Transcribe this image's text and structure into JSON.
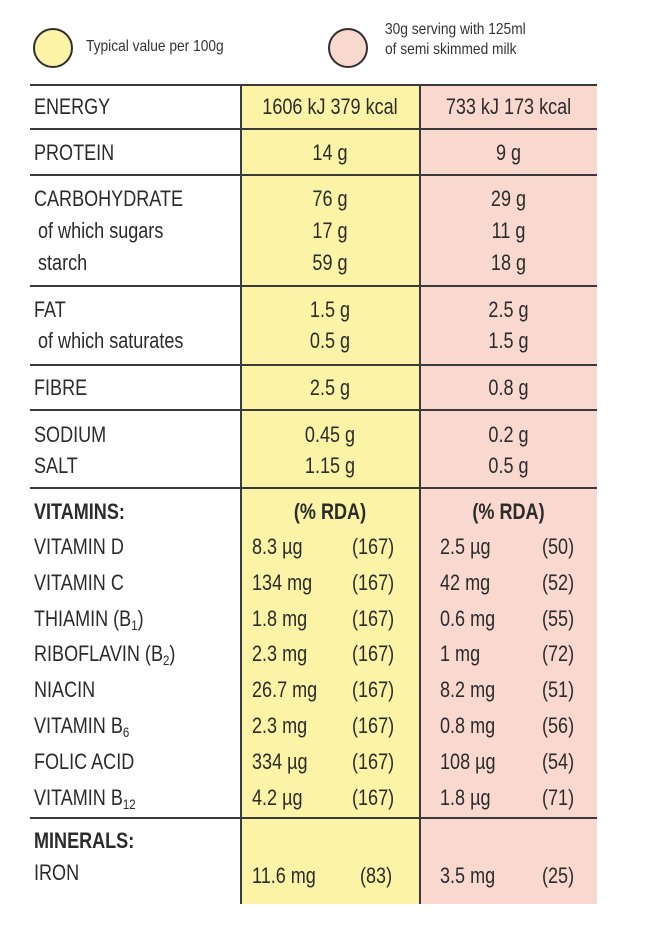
{
  "legend": {
    "per100g": "Typical value per 100g",
    "serving_line1": "30g serving with 125ml",
    "serving_line2": "of semi skimmed milk",
    "per100g_color": "#fbf3a6",
    "serving_color": "#f9d8cf"
  },
  "rows": {
    "energy": {
      "label": "ENERGY",
      "per100": "1606 kJ  379 kcal",
      "serving": "733 kJ  173 kcal"
    },
    "protein": {
      "label": "PROTEIN",
      "per100": "14 g",
      "serving": "9 g"
    },
    "carb": {
      "label": "CARBOHYDRATE",
      "per100": "76 g",
      "serving": "29 g"
    },
    "sugars": {
      "label": "of which sugars",
      "per100": "17 g",
      "serving": "11 g"
    },
    "starch": {
      "label": "starch",
      "per100": "59 g",
      "serving": "18 g"
    },
    "fat": {
      "label": "FAT",
      "per100": "1.5 g",
      "serving": "2.5 g"
    },
    "saturates": {
      "label": "of which saturates",
      "per100": "0.5 g",
      "serving": "1.5 g"
    },
    "fibre": {
      "label": "FIBRE",
      "per100": "2.5 g",
      "serving": "0.8 g"
    },
    "sodium": {
      "label": "SODIUM",
      "per100": "0.45 g",
      "serving": "0.2 g"
    },
    "salt": {
      "label": "SALT",
      "per100": "1.15 g",
      "serving": "0.5 g"
    }
  },
  "vitamins": {
    "heading": "VITAMINS:",
    "rda_per100": "(% RDA)",
    "rda_serving": "(% RDA)",
    "items": [
      {
        "label": "VITAMIN D",
        "sub": "",
        "close": "",
        "a": "8.3 µg",
        "ap": "(167)",
        "b": "2.5 µg",
        "bp": "(50)"
      },
      {
        "label": "VITAMIN C",
        "sub": "",
        "close": "",
        "a": "134 mg",
        "ap": "(167)",
        "b": "42 mg",
        "bp": "(52)"
      },
      {
        "label": "THIAMIN (B",
        "sub": "1",
        "close": ")",
        "a": "1.8 mg",
        "ap": "(167)",
        "b": "0.6 mg",
        "bp": "(55)"
      },
      {
        "label": "RIBOFLAVIN (B",
        "sub": "2",
        "close": ")",
        "a": "2.3 mg",
        "ap": "(167)",
        "b": "1 mg",
        "bp": "(72)"
      },
      {
        "label": "NIACIN",
        "sub": "",
        "close": "",
        "a": "26.7 mg",
        "ap": "(167)",
        "b": "8.2 mg",
        "bp": "(51)"
      },
      {
        "label": "VITAMIN B",
        "sub": "6",
        "close": "",
        "a": "2.3 mg",
        "ap": "(167)",
        "b": "0.8 mg",
        "bp": "(56)"
      },
      {
        "label": "FOLIC ACID",
        "sub": "",
        "close": "",
        "a": "334 µg",
        "ap": "(167)",
        "b": "108 µg",
        "bp": "(54)"
      },
      {
        "label": "VITAMIN B",
        "sub": "12",
        "close": "",
        "a": "4.2 µg",
        "ap": "(167)",
        "b": "1.8 µg",
        "bp": "(71)"
      }
    ]
  },
  "minerals": {
    "heading": "MINERALS:",
    "iron": {
      "label": "IRON",
      "a": "11.6 mg",
      "ap": "(83)",
      "b": "3.5 mg",
      "bp": "(25)"
    }
  }
}
